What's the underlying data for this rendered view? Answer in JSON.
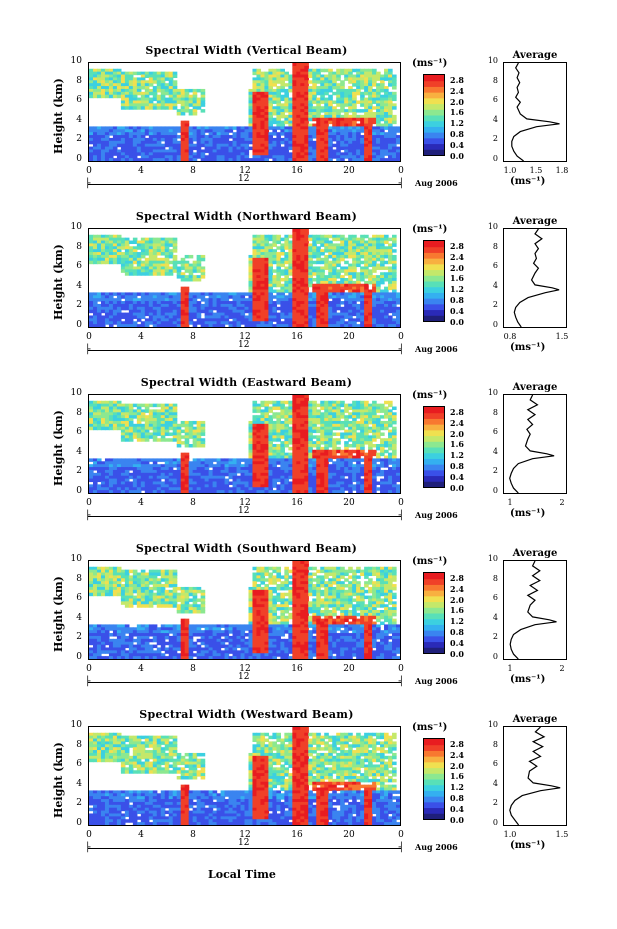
{
  "chart_data": [
    {
      "type": "heatmap",
      "title": "Spectral Width (Vertical Beam)",
      "ylabel": "Height (km)",
      "yticks": [
        "10",
        "8",
        "6",
        "4",
        "2",
        "0"
      ],
      "xticks": [
        "0",
        "4",
        "8",
        "12",
        "16",
        "20",
        "0"
      ],
      "xlim": [
        0,
        24
      ],
      "ylim": [
        0,
        10
      ],
      "date_marker": "12",
      "date_label": "Aug 2006",
      "colorbar": {
        "unit": "(ms⁻¹)",
        "ticks": [
          "2.8",
          "2.4",
          "2.0",
          "1.6",
          "1.2",
          "0.8",
          "0.4",
          "0.0"
        ],
        "range": [
          0.0,
          2.8
        ]
      },
      "average_profile": {
        "title": "Average",
        "unit": "(ms⁻¹)",
        "xticks": [
          "1.0",
          "1.5",
          "1.8"
        ],
        "yticks": [
          "10",
          "8",
          "6",
          "4",
          "2",
          "0"
        ],
        "xlim": [
          0.9,
          1.85
        ],
        "height": [
          0,
          0.5,
          1,
          1.5,
          2,
          2.5,
          3,
          3.5,
          3.8,
          4,
          4.3,
          4.8,
          5.5,
          6,
          6.5,
          7,
          7.5,
          8,
          8.5,
          9,
          9.5,
          10
        ],
        "width": [
          1.2,
          1.1,
          1.05,
          1.02,
          1.02,
          1.05,
          1.15,
          1.4,
          1.75,
          1.6,
          1.25,
          1.15,
          1.1,
          1.15,
          1.08,
          1.12,
          1.1,
          1.14,
          1.1,
          1.13,
          1.08,
          1.12
        ]
      }
    },
    {
      "type": "heatmap",
      "title": "Spectral Width (Northward Beam)",
      "ylabel": "Height (km)",
      "yticks": [
        "10",
        "8",
        "6",
        "4",
        "2",
        "0"
      ],
      "xticks": [
        "0",
        "4",
        "8",
        "12",
        "16",
        "20",
        "0"
      ],
      "xlim": [
        0,
        24
      ],
      "ylim": [
        0,
        10
      ],
      "date_marker": "12",
      "date_label": "Aug 2006",
      "colorbar": {
        "unit": "(ms⁻¹)",
        "ticks": [
          "2.8",
          "2.4",
          "2.0",
          "1.6",
          "1.2",
          "0.8",
          "0.4",
          "0.0"
        ],
        "range": [
          0.0,
          2.8
        ]
      },
      "average_profile": {
        "title": "Average",
        "unit": "(ms⁻¹)",
        "xticks": [
          "0.8",
          "1.5"
        ],
        "yticks": [
          "10",
          "8",
          "6",
          "4",
          "2",
          "0"
        ],
        "xlim": [
          0.75,
          1.65
        ],
        "height": [
          0,
          0.5,
          1,
          1.5,
          2,
          2.5,
          3,
          3.5,
          3.8,
          4,
          4.3,
          4.8,
          5.5,
          6,
          6.5,
          7,
          7.5,
          8,
          8.5,
          9,
          9.5,
          10
        ],
        "width": [
          1.0,
          0.95,
          0.92,
          0.9,
          0.92,
          0.98,
          1.1,
          1.35,
          1.55,
          1.45,
          1.2,
          1.15,
          1.2,
          1.25,
          1.18,
          1.22,
          1.2,
          1.25,
          1.2,
          1.3,
          1.2,
          1.25
        ]
      }
    },
    {
      "type": "heatmap",
      "title": "Spectral Width (Eastward Beam)",
      "ylabel": "Height (km)",
      "yticks": [
        "10",
        "8",
        "6",
        "4",
        "2",
        "0"
      ],
      "xticks": [
        "0",
        "4",
        "8",
        "12",
        "16",
        "20",
        "0"
      ],
      "xlim": [
        0,
        24
      ],
      "ylim": [
        0,
        10
      ],
      "date_marker": "12",
      "date_label": "Aug 2006",
      "colorbar": {
        "unit": "(ms⁻¹)",
        "ticks": [
          "2.8",
          "2.4",
          "2.0",
          "1.6",
          "1.2",
          "0.8",
          "0.4",
          "0.0"
        ],
        "range": [
          0.0,
          2.8
        ]
      },
      "average_profile": {
        "title": "Average",
        "unit": "(ms⁻¹)",
        "xticks": [
          "1",
          "2"
        ],
        "yticks": [
          "10",
          "8",
          "6",
          "4",
          "2",
          "0"
        ],
        "xlim": [
          0.8,
          2.1
        ],
        "height": [
          0,
          0.5,
          1,
          1.5,
          2,
          2.5,
          3,
          3.5,
          3.8,
          4,
          4.3,
          4.8,
          5.5,
          6,
          6.5,
          7,
          7.5,
          8,
          8.5,
          9,
          9.5,
          10
        ],
        "width": [
          1.1,
          1.0,
          0.95,
          0.92,
          0.95,
          1.0,
          1.1,
          1.4,
          1.85,
          1.7,
          1.35,
          1.25,
          1.3,
          1.35,
          1.28,
          1.4,
          1.3,
          1.45,
          1.3,
          1.5,
          1.35,
          1.4
        ]
      }
    },
    {
      "type": "heatmap",
      "title": "Spectral Width (Southward Beam)",
      "ylabel": "Height (km)",
      "yticks": [
        "10",
        "8",
        "6",
        "4",
        "2",
        "0"
      ],
      "xticks": [
        "0",
        "4",
        "8",
        "12",
        "16",
        "20",
        "0"
      ],
      "xlim": [
        0,
        24
      ],
      "ylim": [
        0,
        10
      ],
      "date_marker": "12",
      "date_label": "Aug 2006",
      "colorbar": {
        "unit": "(ms⁻¹)",
        "ticks": [
          "2.8",
          "2.4",
          "2.0",
          "1.6",
          "1.2",
          "0.8",
          "0.4",
          "0.0"
        ],
        "range": [
          0.0,
          2.8
        ]
      },
      "average_profile": {
        "title": "Average",
        "unit": "(ms⁻¹)",
        "xticks": [
          "1",
          "2"
        ],
        "yticks": [
          "10",
          "8",
          "6",
          "4",
          "2",
          "0"
        ],
        "xlim": [
          0.8,
          2.1
        ],
        "height": [
          0,
          0.5,
          1,
          1.5,
          2,
          2.5,
          3,
          3.5,
          3.8,
          4,
          4.3,
          4.8,
          5.5,
          6,
          6.5,
          7,
          7.5,
          8,
          8.5,
          9,
          9.5,
          10
        ],
        "width": [
          1.1,
          1.0,
          0.95,
          0.93,
          0.95,
          1.0,
          1.15,
          1.45,
          1.9,
          1.75,
          1.4,
          1.3,
          1.35,
          1.45,
          1.3,
          1.5,
          1.35,
          1.55,
          1.4,
          1.55,
          1.4,
          1.45
        ]
      }
    },
    {
      "type": "heatmap",
      "title": "Spectral Width (Westward Beam)",
      "ylabel": "Height (km)",
      "yticks": [
        "10",
        "8",
        "6",
        "4",
        "2",
        "0"
      ],
      "xticks": [
        "0",
        "4",
        "8",
        "12",
        "16",
        "20",
        "0"
      ],
      "xlim": [
        0,
        24
      ],
      "ylim": [
        0,
        10
      ],
      "date_marker": "12",
      "date_label": "Aug 2006",
      "colorbar": {
        "unit": "(ms⁻¹)",
        "ticks": [
          "2.8",
          "2.4",
          "2.0",
          "1.6",
          "1.2",
          "0.8",
          "0.4",
          "0.0"
        ],
        "range": [
          0.0,
          2.8
        ]
      },
      "average_profile": {
        "title": "Average",
        "unit": "(ms⁻¹)",
        "xticks": [
          "1.0",
          "1.5"
        ],
        "yticks": [
          "10",
          "8",
          "6",
          "4",
          "2",
          "0"
        ],
        "xlim": [
          0.85,
          1.7
        ],
        "height": [
          0,
          0.5,
          1,
          1.5,
          2,
          2.5,
          3,
          3.5,
          3.8,
          4,
          4.3,
          4.8,
          5.5,
          6,
          6.5,
          7,
          7.5,
          8,
          8.5,
          9,
          9.5,
          10
        ],
        "width": [
          1.05,
          1.0,
          0.95,
          0.93,
          0.95,
          1.0,
          1.1,
          1.35,
          1.62,
          1.5,
          1.25,
          1.18,
          1.2,
          1.3,
          1.2,
          1.35,
          1.25,
          1.38,
          1.25,
          1.4,
          1.28,
          1.35
        ]
      }
    }
  ],
  "x_axis_label": "Local Time"
}
